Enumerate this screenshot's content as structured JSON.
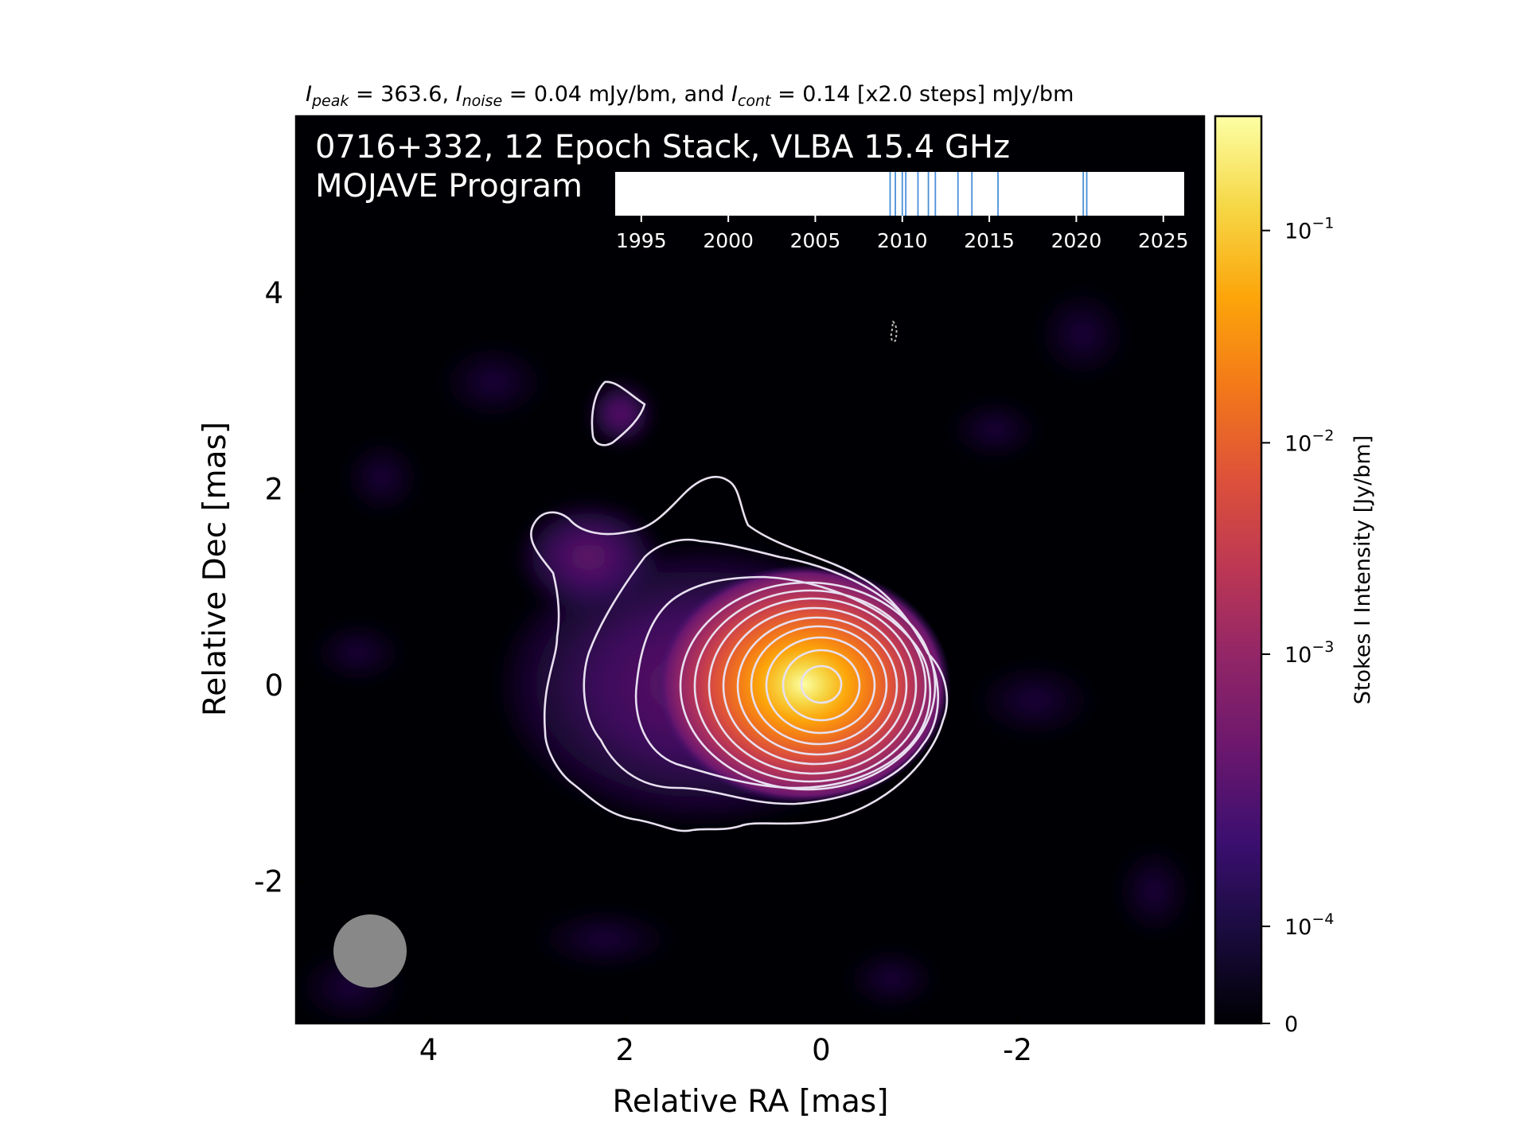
{
  "chart_data": {
    "type": "heatmap",
    "header": {
      "peak_sym": "I",
      "peak_sub": "peak",
      "peak_val": " = 363.6, ",
      "noise_sym": "I",
      "noise_sub": "noise",
      "noise_val": " = 0.04 mJy/bm, and ",
      "cont_sym": "I",
      "cont_sub": "cont",
      "cont_val": " = 0.14 [x2.0 steps] mJy/bm"
    },
    "title_line1": "0716+332, 12 Epoch Stack, VLBA 15.4 GHz",
    "title_line2": "MOJAVE Program",
    "xlabel": "Relative RA [mas]",
    "ylabel": "Relative Dec [mas]",
    "xlim": [
      5.35,
      -3.9
    ],
    "ylim": [
      -3.45,
      5.8
    ],
    "xticks": [
      {
        "v": 4,
        "label": "4"
      },
      {
        "v": 2,
        "label": "2"
      },
      {
        "v": 0,
        "label": "0"
      },
      {
        "v": -2,
        "label": "-2"
      }
    ],
    "yticks": [
      {
        "v": 4,
        "label": "4"
      },
      {
        "v": 2,
        "label": "2"
      },
      {
        "v": 0,
        "label": "0"
      },
      {
        "v": -2,
        "label": "-2"
      }
    ],
    "colorbar": {
      "label": "Stokes I Intensity [Jy/bm]",
      "colormap": "inferno",
      "ticks": [
        {
          "frac": 0.874,
          "base": "10",
          "exp": "−1"
        },
        {
          "frac": 0.64,
          "base": "10",
          "exp": "−2"
        },
        {
          "frac": 0.407,
          "base": "10",
          "exp": "−3"
        },
        {
          "frac": 0.107,
          "base": "10",
          "exp": "−4"
        },
        {
          "frac": 0.0,
          "base": "0",
          "exp": ""
        }
      ]
    },
    "epoch_timeline": {
      "xlim": [
        1993.5,
        2026.2
      ],
      "ticks": [
        1995,
        2000,
        2005,
        2010,
        2015,
        2020,
        2025
      ],
      "epochs": [
        2009.3,
        2009.6,
        2010.0,
        2010.2,
        2010.9,
        2011.5,
        2011.9,
        2013.2,
        2014.0,
        2015.5,
        2020.4,
        2020.6
      ],
      "line_color": "#4a90d9"
    },
    "source": {
      "peak_x": 0.0,
      "peak_y": 0.0
    },
    "contours_count": 12,
    "beam": {
      "x": 4.6,
      "y": -2.7,
      "diameter_mas": 0.75,
      "color": "#888888"
    },
    "colors": {
      "background": "#000004",
      "contour": "#e8e0f0"
    }
  }
}
